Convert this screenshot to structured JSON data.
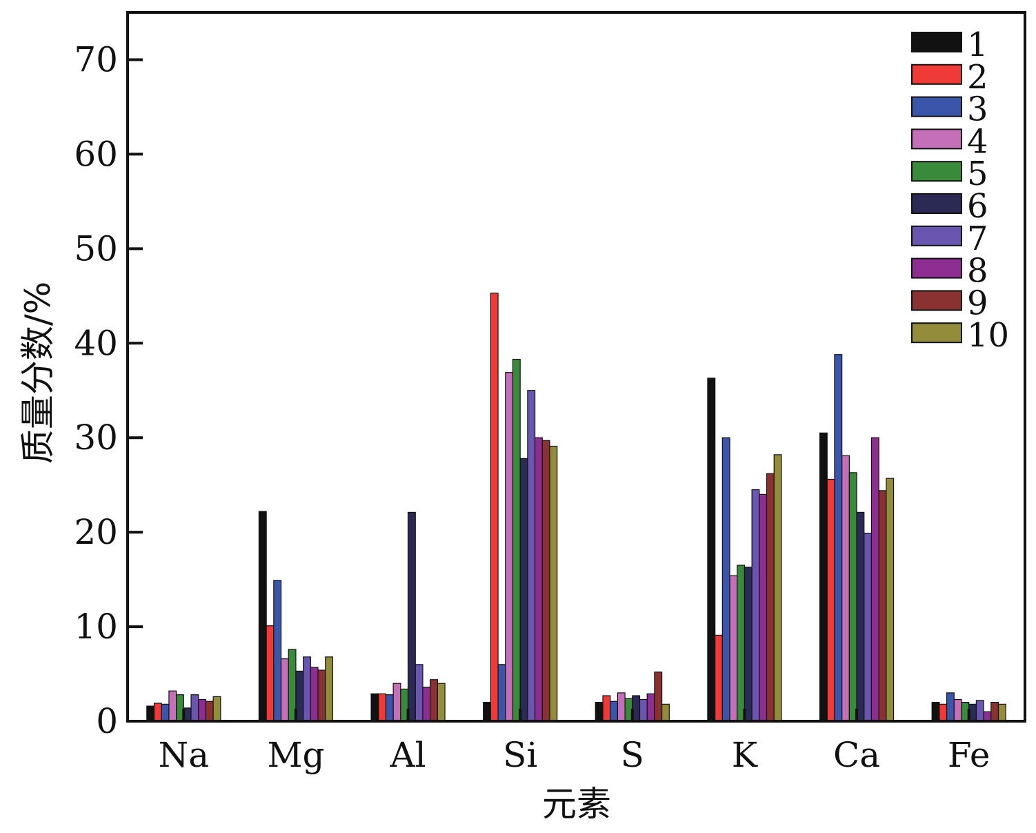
{
  "chart_data": {
    "type": "bar",
    "xlabel": "元素",
    "ylabel": "质量分数/%",
    "ylim": [
      0,
      75
    ],
    "yticks": [
      0,
      10,
      20,
      30,
      40,
      50,
      60,
      70
    ],
    "grid": false,
    "legend_position": "top-right",
    "categories": [
      "Na",
      "Mg",
      "Al",
      "Si",
      "S",
      "K",
      "Ca",
      "Fe"
    ],
    "series": [
      {
        "name": "1",
        "color": "#111111",
        "values": [
          1.6,
          22.2,
          2.9,
          2.0,
          2.0,
          36.3,
          30.5,
          2.0
        ]
      },
      {
        "name": "2",
        "color": "#f03a37",
        "values": [
          1.9,
          10.1,
          2.9,
          45.3,
          2.7,
          9.1,
          25.6,
          1.8
        ]
      },
      {
        "name": "3",
        "color": "#3b55aa",
        "values": [
          1.8,
          14.9,
          2.8,
          6.0,
          2.1,
          30.0,
          38.8,
          3.0
        ]
      },
      {
        "name": "4",
        "color": "#c46fb8",
        "values": [
          3.2,
          6.6,
          4.0,
          36.9,
          3.0,
          15.4,
          28.1,
          2.3
        ]
      },
      {
        "name": "5",
        "color": "#3a8a3c",
        "values": [
          2.8,
          7.6,
          3.4,
          38.3,
          2.4,
          16.5,
          26.3,
          2.0
        ]
      },
      {
        "name": "6",
        "color": "#2b2a55",
        "values": [
          1.4,
          5.3,
          22.1,
          27.8,
          2.7,
          16.3,
          22.1,
          1.8
        ]
      },
      {
        "name": "7",
        "color": "#6a55b0",
        "values": [
          2.8,
          6.8,
          6.0,
          35.0,
          2.3,
          24.5,
          19.9,
          2.2
        ]
      },
      {
        "name": "8",
        "color": "#8e2d92",
        "values": [
          2.3,
          5.7,
          3.6,
          30.0,
          2.9,
          24.0,
          30.0,
          1.0
        ]
      },
      {
        "name": "9",
        "color": "#8a3232",
        "values": [
          2.1,
          5.4,
          4.4,
          29.7,
          5.2,
          26.2,
          24.4,
          2.0
        ]
      },
      {
        "name": "10",
        "color": "#938c3a",
        "values": [
          2.6,
          6.8,
          4.0,
          29.1,
          1.8,
          28.2,
          25.7,
          1.8
        ]
      }
    ]
  }
}
